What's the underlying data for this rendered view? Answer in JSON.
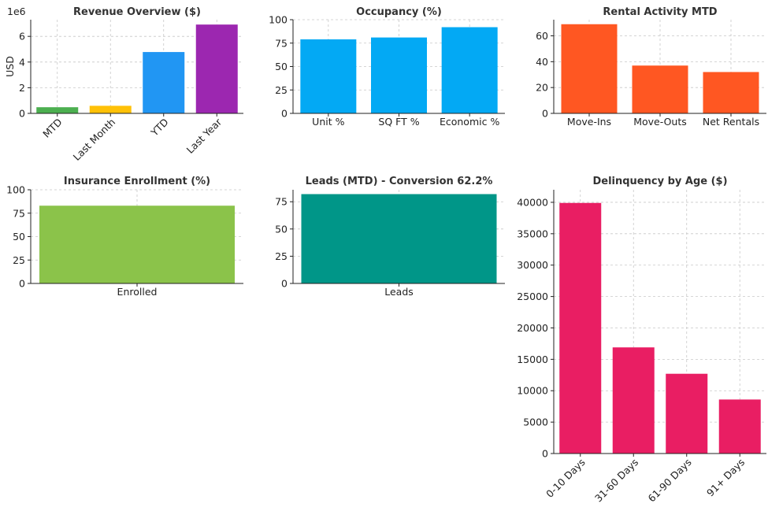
{
  "chart_data": [
    {
      "id": "revenue",
      "type": "bar",
      "title": "Revenue Overview ($)",
      "ylabel": "USD",
      "offset_label": "1e6",
      "categories": [
        "MTD",
        "Last Month",
        "YTD",
        "Last Year"
      ],
      "values": [
        480000,
        590000,
        4780000,
        6920000
      ],
      "colors": [
        "#4caf50",
        "#ffc107",
        "#2196f3",
        "#9c27b0"
      ],
      "ylim": [
        0,
        7300000
      ],
      "yticks": [
        0,
        2000000,
        4000000,
        6000000
      ],
      "ytick_labels": [
        "0",
        "2",
        "4",
        "6"
      ],
      "rotate_xlabels": true,
      "grid": true
    },
    {
      "id": "occupancy",
      "type": "bar",
      "title": "Occupancy (%)",
      "categories": [
        "Unit %",
        "SQ FT %",
        "Economic %"
      ],
      "values": [
        79,
        81,
        92
      ],
      "colors": [
        "#03a9f4",
        "#03a9f4",
        "#03a9f4"
      ],
      "ylim": [
        0,
        100
      ],
      "yticks": [
        0,
        25,
        50,
        75,
        100
      ],
      "ytick_labels": [
        "0",
        "25",
        "50",
        "75",
        "100"
      ],
      "rotate_xlabels": false,
      "grid": true
    },
    {
      "id": "rental",
      "type": "bar",
      "title": "Rental Activity MTD",
      "categories": [
        "Move-Ins",
        "Move-Outs",
        "Net Rentals"
      ],
      "values": [
        69,
        37,
        32
      ],
      "colors": [
        "#ff5722",
        "#ff5722",
        "#ff5722"
      ],
      "ylim": [
        0,
        72.5
      ],
      "yticks": [
        0,
        20,
        40,
        60
      ],
      "ytick_labels": [
        "0",
        "20",
        "40",
        "60"
      ],
      "rotate_xlabels": false,
      "grid": true
    },
    {
      "id": "insurance",
      "type": "bar",
      "title": "Insurance Enrollment (%)",
      "categories": [
        "Enrolled"
      ],
      "values": [
        83
      ],
      "colors": [
        "#8bc34a"
      ],
      "ylim": [
        0,
        100
      ],
      "yticks": [
        0,
        25,
        50,
        75,
        100
      ],
      "ytick_labels": [
        "0",
        "25",
        "50",
        "75",
        "100"
      ],
      "rotate_xlabels": false,
      "grid": true
    },
    {
      "id": "leads",
      "type": "bar",
      "title": "Leads (MTD) - Conversion 62.2%",
      "categories": [
        "Leads"
      ],
      "values": [
        82
      ],
      "colors": [
        "#009688"
      ],
      "ylim": [
        0,
        86
      ],
      "yticks": [
        0,
        25,
        50,
        75
      ],
      "ytick_labels": [
        "0",
        "25",
        "50",
        "75"
      ],
      "rotate_xlabels": false,
      "grid": true
    },
    {
      "id": "delinquency",
      "type": "bar",
      "title": "Delinquency by Age ($)",
      "categories": [
        "0-10 Days",
        "31-60 Days",
        "61-90 Days",
        "91+ Days"
      ],
      "values": [
        39900,
        16900,
        12700,
        8600
      ],
      "colors": [
        "#e91e63",
        "#e91e63",
        "#e91e63",
        "#e91e63"
      ],
      "ylim": [
        0,
        42000
      ],
      "yticks": [
        0,
        5000,
        10000,
        15000,
        20000,
        25000,
        30000,
        35000,
        40000
      ],
      "ytick_labels": [
        "0",
        "5000",
        "10000",
        "15000",
        "20000",
        "25000",
        "30000",
        "35000",
        "40000"
      ],
      "rotate_xlabels": true,
      "grid": true
    }
  ]
}
